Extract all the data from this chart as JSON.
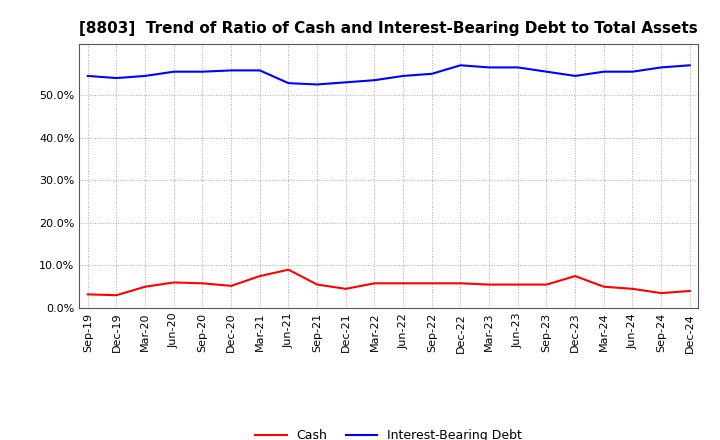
{
  "title": "[8803]  Trend of Ratio of Cash and Interest-Bearing Debt to Total Assets",
  "x_labels": [
    "Sep-19",
    "Dec-19",
    "Mar-20",
    "Jun-20",
    "Sep-20",
    "Dec-20",
    "Mar-21",
    "Jun-21",
    "Sep-21",
    "Dec-21",
    "Mar-22",
    "Jun-22",
    "Sep-22",
    "Dec-22",
    "Mar-23",
    "Jun-23",
    "Sep-23",
    "Dec-23",
    "Mar-24",
    "Jun-24",
    "Sep-24",
    "Dec-24"
  ],
  "cash": [
    3.2,
    3.0,
    5.0,
    6.0,
    5.8,
    5.2,
    7.5,
    9.0,
    5.5,
    4.5,
    5.8,
    5.8,
    5.8,
    5.8,
    5.5,
    5.5,
    5.5,
    7.5,
    5.0,
    4.5,
    3.5,
    4.0
  ],
  "interest_bearing_debt": [
    54.5,
    54.0,
    54.5,
    55.5,
    55.5,
    55.8,
    55.8,
    52.8,
    52.5,
    53.0,
    53.5,
    54.5,
    55.0,
    57.0,
    56.5,
    56.5,
    55.5,
    54.5,
    55.5,
    55.5,
    56.5,
    57.0
  ],
  "cash_color": "#ff0000",
  "debt_color": "#0000ff",
  "ylim_min": 0,
  "ylim_max": 62,
  "yticks": [
    0.0,
    10.0,
    20.0,
    30.0,
    40.0,
    50.0
  ],
  "background_color": "#ffffff",
  "grid_color": "#aaaaaa",
  "legend_cash": "Cash",
  "legend_debt": "Interest-Bearing Debt",
  "title_fontsize": 11,
  "tick_fontsize": 8,
  "line_width": 1.5
}
